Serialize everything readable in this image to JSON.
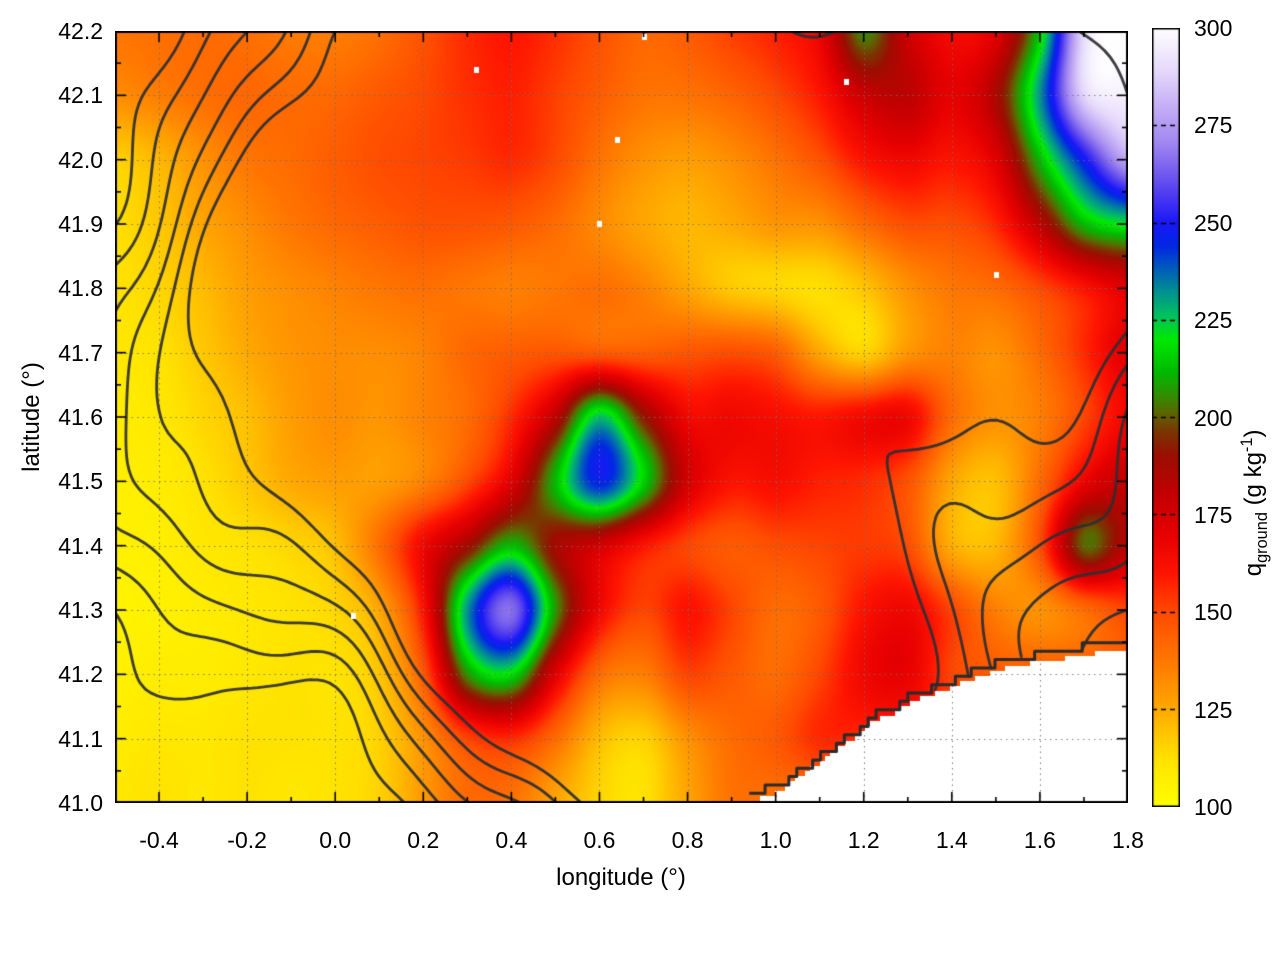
{
  "axes": {
    "x": {
      "label": "longitude (°)",
      "min": -0.5,
      "max": 1.8,
      "ticks": [
        -0.4,
        -0.2,
        0.0,
        0.2,
        0.4,
        0.6,
        0.8,
        1.0,
        1.2,
        1.4,
        1.6,
        1.8
      ],
      "minor_step": 0.1
    },
    "y": {
      "label": "latitude (°)",
      "min": 41.0,
      "max": 42.2,
      "ticks": [
        41.0,
        41.1,
        41.2,
        41.3,
        41.4,
        41.5,
        41.6,
        41.7,
        41.8,
        41.9,
        42.0,
        42.1,
        42.2
      ],
      "minor_step": 0.05
    }
  },
  "colorbar": {
    "min": 100,
    "max": 300,
    "ticks": [
      100,
      125,
      150,
      175,
      200,
      225,
      250,
      275,
      300
    ],
    "label_main": "q",
    "label_sub": "ground",
    "label_mid": " (g kg",
    "label_sup": "-1",
    "label_end": ")"
  },
  "chart_data": {
    "type": "heatmap",
    "title": "",
    "xlabel": "longitude (°)",
    "ylabel": "latitude (°)",
    "colorbar_label": "q_ground (g kg^-1)",
    "x_range": [
      -0.5,
      1.8
    ],
    "y_range": [
      41.0,
      42.2
    ],
    "value_range": [
      100,
      300
    ],
    "grid_on": true,
    "grid_lon": [
      -0.5,
      -0.4,
      -0.3,
      -0.2,
      -0.1,
      0.0,
      0.1,
      0.2,
      0.3,
      0.4,
      0.5,
      0.6,
      0.7,
      0.8,
      0.9,
      1.0,
      1.1,
      1.2,
      1.3,
      1.4,
      1.5,
      1.6,
      1.7,
      1.8
    ],
    "grid_lat": [
      42.2,
      42.1,
      42.0,
      41.9,
      41.8,
      41.7,
      41.6,
      41.5,
      41.4,
      41.3,
      41.2,
      41.1,
      41.0
    ],
    "values": [
      [
        138,
        140,
        141,
        140,
        137,
        136,
        140,
        148,
        156,
        160,
        155,
        148,
        142,
        145,
        152,
        158,
        168,
        205,
        178,
        165,
        172,
        215,
        290,
        300
      ],
      [
        132,
        136,
        140,
        142,
        141,
        142,
        146,
        150,
        155,
        158,
        152,
        145,
        139,
        139,
        143,
        150,
        160,
        178,
        182,
        170,
        186,
        232,
        288,
        296
      ],
      [
        116,
        122,
        131,
        138,
        141,
        145,
        149,
        151,
        153,
        156,
        150,
        139,
        131,
        128,
        132,
        139,
        148,
        161,
        166,
        161,
        172,
        212,
        248,
        278
      ],
      [
        113,
        118,
        126,
        132,
        138,
        142,
        145,
        148,
        148,
        146,
        141,
        133,
        126,
        122,
        125,
        130,
        131,
        141,
        149,
        149,
        157,
        182,
        212,
        222
      ],
      [
        112,
        115,
        121,
        128,
        132,
        135,
        138,
        140,
        138,
        136,
        138,
        140,
        135,
        126,
        118,
        115,
        113,
        119,
        131,
        138,
        141,
        150,
        161,
        172
      ],
      [
        110,
        112,
        118,
        125,
        130,
        132,
        132,
        135,
        142,
        145,
        147,
        146,
        145,
        147,
        149,
        145,
        126,
        116,
        130,
        135,
        131,
        141,
        156,
        172
      ],
      [
        108,
        110,
        115,
        120,
        128,
        132,
        130,
        135,
        141,
        156,
        182,
        226,
        192,
        166,
        166,
        163,
        160,
        165,
        166,
        141,
        131,
        136,
        151,
        166
      ],
      [
        107,
        108,
        112,
        118,
        125,
        128,
        128,
        135,
        150,
        172,
        212,
        246,
        216,
        176,
        161,
        163,
        158,
        156,
        148,
        126,
        120,
        141,
        168,
        181
      ],
      [
        106,
        107,
        110,
        112,
        115,
        120,
        140,
        166,
        188,
        212,
        188,
        176,
        161,
        151,
        146,
        149,
        151,
        153,
        149,
        124,
        122,
        149,
        201,
        183
      ],
      [
        105,
        106,
        108,
        110,
        112,
        115,
        126,
        161,
        232,
        266,
        207,
        166,
        151,
        161,
        151,
        141,
        146,
        161,
        166,
        151,
        136,
        131,
        141,
        151
      ],
      [
        106,
        108,
        108,
        110,
        112,
        112,
        119,
        146,
        206,
        218,
        172,
        141,
        136,
        151,
        146,
        141,
        151,
        166,
        169,
        151,
        146,
        null,
        null,
        null
      ],
      [
        108,
        110,
        110,
        112,
        112,
        112,
        116,
        131,
        151,
        156,
        141,
        121,
        116,
        131,
        141,
        146,
        156,
        null,
        null,
        null,
        null,
        null,
        null,
        null
      ],
      [
        110,
        112,
        110,
        112,
        110,
        112,
        116,
        129,
        141,
        139,
        126,
        115,
        112,
        126,
        139,
        null,
        null,
        null,
        null,
        null,
        null,
        null,
        null,
        null
      ]
    ],
    "palette_stops": [
      [
        100,
        "#ffff00"
      ],
      [
        112,
        "#ffe300"
      ],
      [
        125,
        "#ffa900"
      ],
      [
        137,
        "#ff7a00"
      ],
      [
        150,
        "#ff4a00"
      ],
      [
        160,
        "#ff1400"
      ],
      [
        170,
        "#e60000"
      ],
      [
        180,
        "#c50000"
      ],
      [
        190,
        "#9b0e00"
      ],
      [
        196,
        "#7c3300"
      ],
      [
        201,
        "#5e6400"
      ],
      [
        206,
        "#2f9100"
      ],
      [
        212,
        "#00bc00"
      ],
      [
        220,
        "#00ea00"
      ],
      [
        226,
        "#00c25e"
      ],
      [
        232,
        "#00948e"
      ],
      [
        238,
        "#005fba"
      ],
      [
        244,
        "#0029e2"
      ],
      [
        250,
        "#1a18f8"
      ],
      [
        257,
        "#4d3af0"
      ],
      [
        264,
        "#7b62ee"
      ],
      [
        271,
        "#a289f1"
      ],
      [
        279,
        "#c3abf5"
      ],
      [
        289,
        "#e5d9fb"
      ],
      [
        300,
        "#ffffff"
      ]
    ],
    "sea_mask_coast": [
      [
        0.94,
        41.0
      ],
      [
        0.98,
        41.012
      ],
      [
        1.02,
        41.02
      ],
      [
        1.06,
        41.045
      ],
      [
        1.1,
        41.06
      ],
      [
        1.14,
        41.085
      ],
      [
        1.18,
        41.1
      ],
      [
        1.22,
        41.125
      ],
      [
        1.27,
        41.14
      ],
      [
        1.32,
        41.16
      ],
      [
        1.38,
        41.175
      ],
      [
        1.44,
        41.19
      ],
      [
        1.5,
        41.205
      ],
      [
        1.56,
        41.215
      ],
      [
        1.63,
        41.222
      ],
      [
        1.7,
        41.23
      ],
      [
        1.8,
        41.238
      ]
    ],
    "masked_specks": [
      [
        0.32,
        42.14
      ],
      [
        0.64,
        42.03
      ],
      [
        0.6,
        41.9
      ],
      [
        0.7,
        42.19
      ],
      [
        0.04,
        41.29
      ],
      [
        1.16,
        42.12
      ],
      [
        1.5,
        41.82
      ]
    ],
    "contour_overlay": {
      "line_color": "#2e2e32",
      "line_width": 2.8,
      "levels": [
        0.22,
        0.36,
        0.5,
        0.64,
        0.78,
        0.92
      ],
      "hills": [
        [
          0.95,
          0.3,
          0.52,
          41.5
        ],
        [
          0.75,
          0.22,
          0.33,
          41.3
        ],
        [
          0.85,
          0.28,
          0.72,
          41.18
        ],
        [
          0.7,
          0.24,
          1.02,
          41.32
        ],
        [
          0.8,
          0.34,
          1.52,
          41.68
        ],
        [
          0.85,
          0.3,
          1.6,
          42.08
        ],
        [
          0.75,
          0.36,
          0.28,
          42.12
        ],
        [
          0.65,
          0.28,
          0.82,
          42.02
        ],
        [
          0.55,
          0.26,
          -0.18,
          41.92
        ],
        [
          0.6,
          0.3,
          -0.28,
          41.55
        ],
        [
          0.55,
          0.24,
          0.1,
          41.72
        ],
        [
          0.5,
          0.2,
          1.3,
          41.12
        ],
        [
          0.45,
          0.18,
          0.42,
          41.86
        ],
        [
          0.5,
          0.22,
          1.1,
          41.95
        ],
        [
          -0.35,
          0.28,
          0.12,
          41.12
        ],
        [
          -0.3,
          0.24,
          1.22,
          41.5
        ],
        [
          -0.3,
          0.26,
          -0.42,
          42.02
        ]
      ],
      "wiggles": [
        [
          0.055,
          9.2,
          11.3,
          0.5,
          1.1
        ],
        [
          0.045,
          14.7,
          7.4,
          2.0,
          0.3
        ],
        [
          0.04,
          21.3,
          16.1,
          4.0,
          2.2
        ],
        [
          0.035,
          6.1,
          19.7,
          1.2,
          3.3
        ]
      ]
    }
  }
}
